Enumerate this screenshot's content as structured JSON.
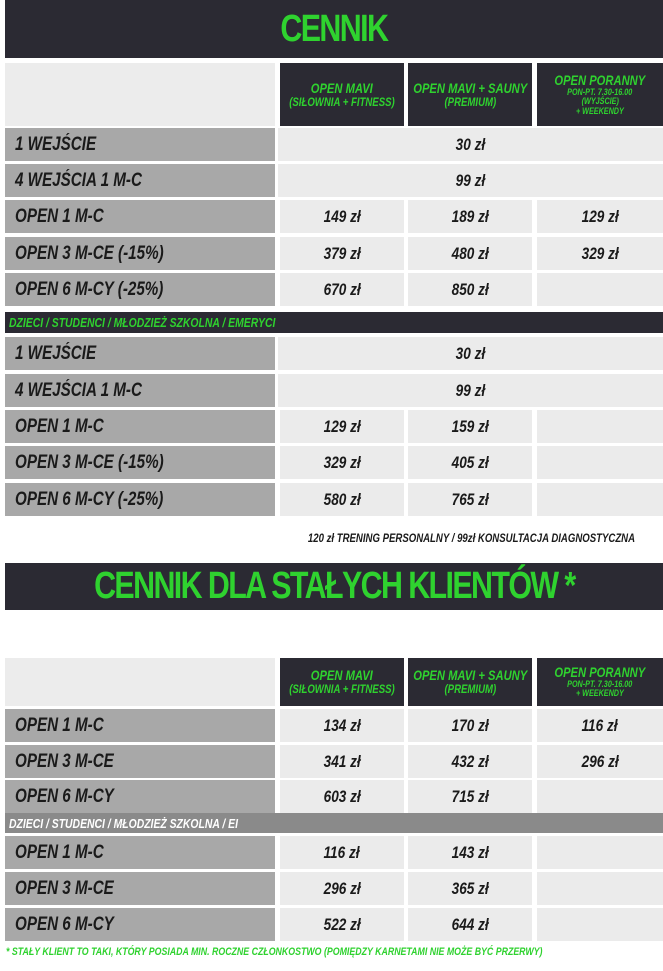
{
  "section1": {
    "title": "CENNIK",
    "columns": [
      {
        "l1": "OPEN MAVI",
        "l2": "(SIŁOWNIA + FITNESS)"
      },
      {
        "l1": "OPEN MAVI + SAUNY",
        "l2": "(PREMIUM)"
      },
      {
        "l1": "OPEN PORANNY",
        "l2": "PON-PT. 7.30-16.00",
        "l3": "(WYJŚCIE)",
        "l4": "+ WEEKENDY"
      }
    ],
    "rows": [
      {
        "label": "1 WEJŚCIE",
        "merged": "30 zł"
      },
      {
        "label": "4 WEJŚCIA 1 M-C",
        "merged": "99 zł"
      },
      {
        "label": "OPEN 1 M-C",
        "values": [
          "149 zł",
          "189 zł",
          "129 zł"
        ]
      },
      {
        "label": "OPEN 3 M-CE (-15%)",
        "values": [
          "379 zł",
          "480 zł",
          "329 zł"
        ]
      },
      {
        "label": "OPEN 6 M-CY (-25%)",
        "values": [
          "670 zł",
          "850 zł",
          ""
        ]
      }
    ],
    "banner": "DZIECI / STUDENCI / MŁODZIEŻ SZKOLNA / EMERYCI",
    "rows2": [
      {
        "label": "1 WEJŚCIE",
        "merged": "30 zł"
      },
      {
        "label": "4 WEJŚCIA 1 M-C",
        "merged": "99 zł"
      },
      {
        "label": "OPEN 1 M-C",
        "values": [
          "129 zł",
          "159 zł",
          ""
        ]
      },
      {
        "label": "OPEN 3 M-CE (-15%)",
        "values": [
          "329 zł",
          "405 zł",
          ""
        ]
      },
      {
        "label": "OPEN 6 M-CY (-25%)",
        "values": [
          "580 zł",
          "765 zł",
          ""
        ]
      }
    ],
    "note": "120 zł TRENING PERSONALNY /  99zł KONSULTACJA DIAGNOSTYCZNA"
  },
  "section2": {
    "title": "CENNIK DLA STAŁYCH KLIENTÓW *",
    "columns": [
      {
        "l1": "OPEN MAVI",
        "l2": "(SIŁOWNIA + FITNESS)"
      },
      {
        "l1": "OPEN MAVI + SAUNY",
        "l2": "(PREMIUM)"
      },
      {
        "l1": "OPEN PORANNY",
        "l2": "PON-PT. 7.30-16.00",
        "l3": "+ WEEKENDY"
      }
    ],
    "rows": [
      {
        "label": "OPEN 1 M-C",
        "values": [
          "134 zł",
          "170 zł",
          "116 zł"
        ]
      },
      {
        "label": "OPEN 3 M-CE",
        "values": [
          "341 zł",
          "432 zł",
          "296 zł"
        ]
      },
      {
        "label": "OPEN 6 M-CY",
        "values": [
          "603 zł",
          "715 zł",
          ""
        ]
      }
    ],
    "banner": "DZIECI / STUDENCI / MŁODZIEŻ SZKOLNA / EI",
    "rows2": [
      {
        "label": "OPEN 1 M-C",
        "values": [
          "116 zł",
          "143 zł",
          ""
        ]
      },
      {
        "label": "OPEN 3 M-CE",
        "values": [
          "296 zł",
          "365 zł",
          ""
        ]
      },
      {
        "label": "OPEN 6 M-CY",
        "values": [
          "522 zł",
          "644 zł",
          ""
        ]
      }
    ],
    "footnote": "* STAŁY KLIENT TO TAKI, KTÓRY POSIADA MIN. ROCZNE CZŁONKOSTWO (POMIĘDZY KARNETAMI NIE MOŻE BYĆ PRZERWY)"
  },
  "colors": {
    "dark": "#2b2a33",
    "green": "#2fd22f",
    "label_gray": "#a8a8a8",
    "cell_light": "#ebebeb"
  }
}
